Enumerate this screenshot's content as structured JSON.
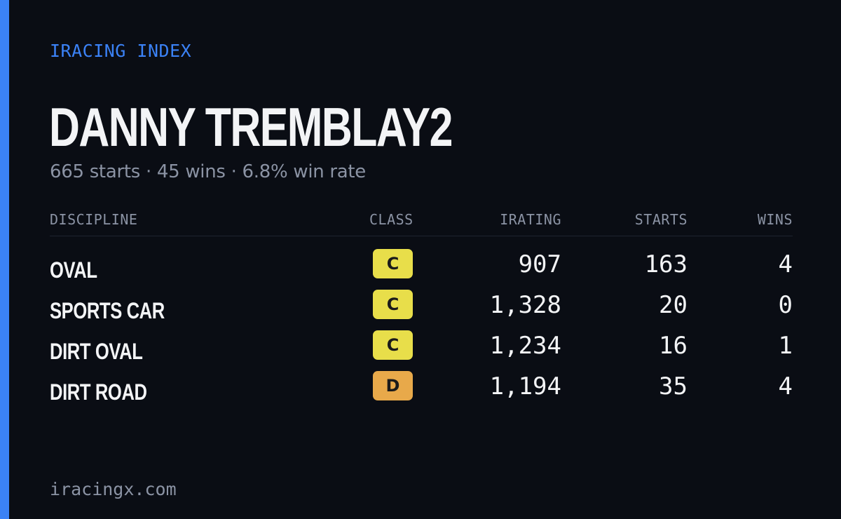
{
  "brand": "IRACING INDEX",
  "driver": {
    "name": "DANNY TREMBLAY2",
    "summary": "665 starts · 45 wins · 6.8% win rate"
  },
  "table": {
    "headers": {
      "discipline": "DISCIPLINE",
      "class": "CLASS",
      "irating": "IRATING",
      "starts": "STARTS",
      "wins": "WINS"
    },
    "rows": [
      {
        "discipline": "OVAL",
        "class": "C",
        "class_color": "#e8de4a",
        "irating": "907",
        "starts": "163",
        "wins": "4"
      },
      {
        "discipline": "SPORTS CAR",
        "class": "C",
        "class_color": "#e8de4a",
        "irating": "1,328",
        "starts": "20",
        "wins": "0"
      },
      {
        "discipline": "DIRT OVAL",
        "class": "C",
        "class_color": "#e8de4a",
        "irating": "1,234",
        "starts": "16",
        "wins": "1"
      },
      {
        "discipline": "DIRT ROAD",
        "class": "D",
        "class_color": "#e8a94a",
        "irating": "1,194",
        "starts": "35",
        "wins": "4"
      }
    ]
  },
  "footer": "iracingx.com",
  "colors": {
    "background": "#0a0d14",
    "accent": "#3b82f6",
    "text": "#f3f4f6",
    "muted": "#8b93a4"
  }
}
